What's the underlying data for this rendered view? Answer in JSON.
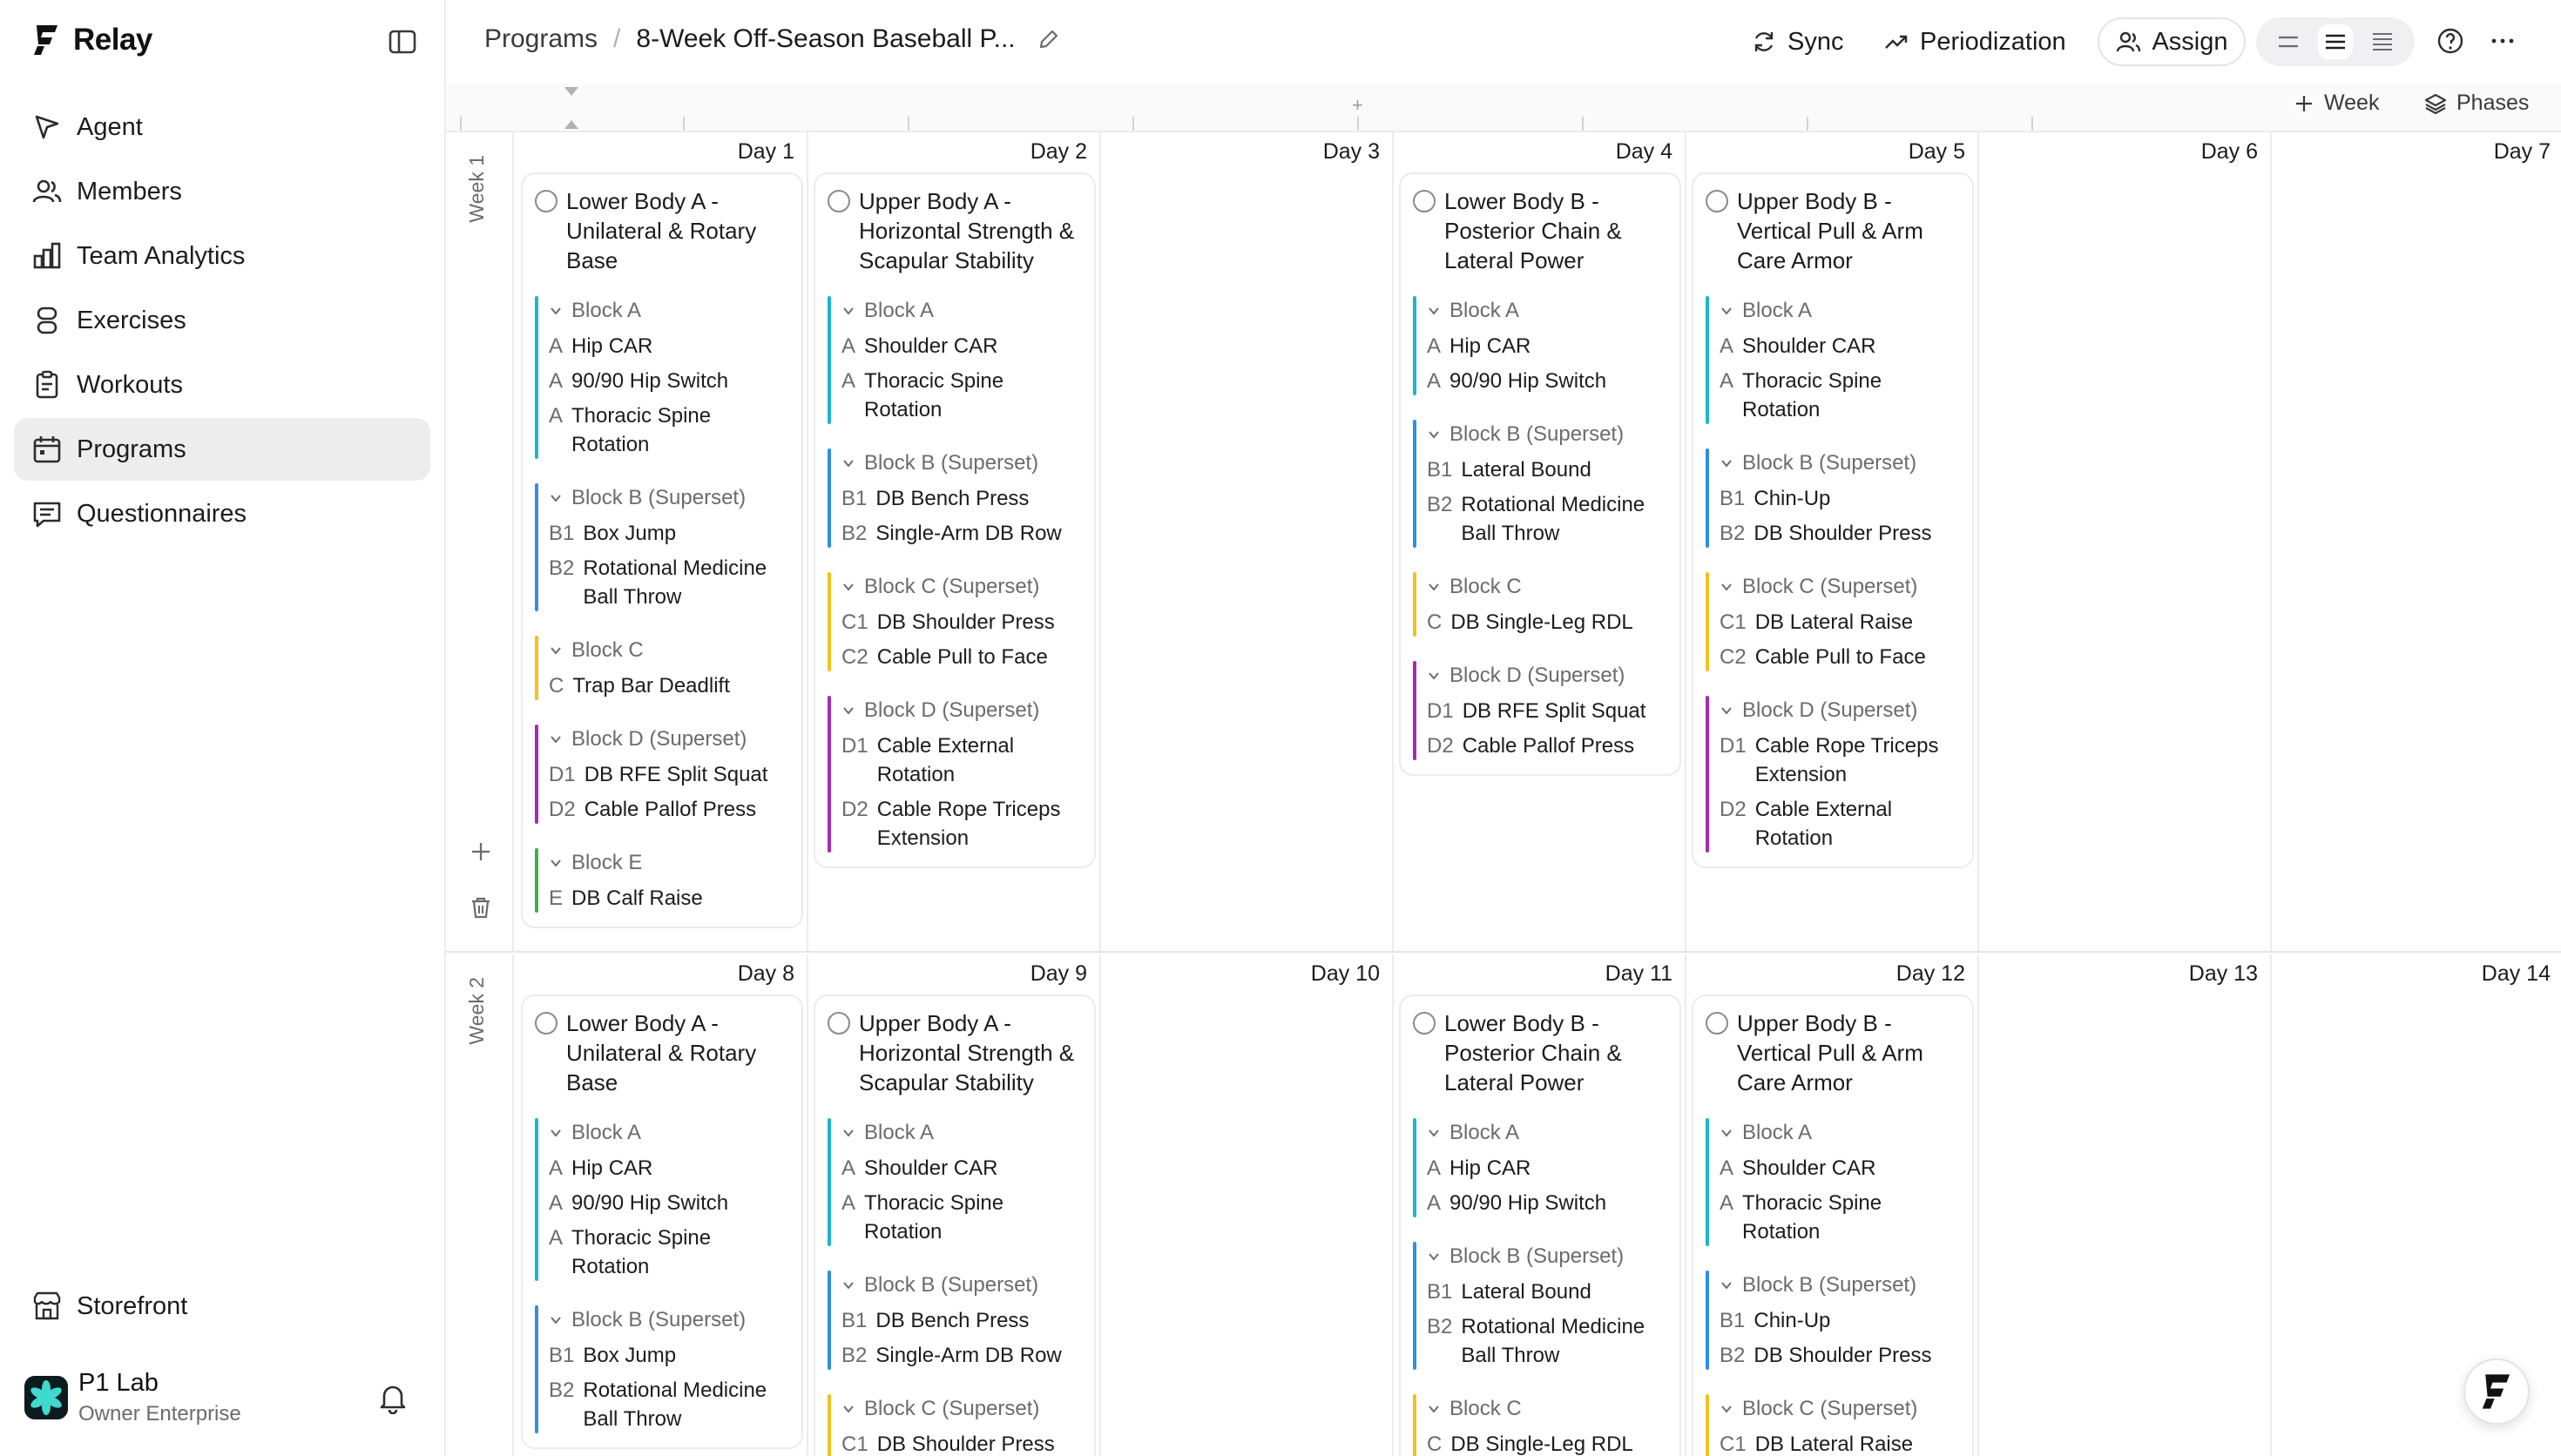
{
  "app": {
    "name": "Relay"
  },
  "sidebar": {
    "items": [
      {
        "label": "Agent",
        "icon": "agent-icon"
      },
      {
        "label": "Members",
        "icon": "members-icon"
      },
      {
        "label": "Team Analytics",
        "icon": "analytics-icon"
      },
      {
        "label": "Exercises",
        "icon": "exercises-icon"
      },
      {
        "label": "Workouts",
        "icon": "workouts-icon"
      },
      {
        "label": "Programs",
        "icon": "programs-icon",
        "active": true
      },
      {
        "label": "Questionnaires",
        "icon": "questionnaires-icon"
      }
    ],
    "storefront": "Storefront",
    "account": {
      "name": "P1 Lab",
      "role": "Owner  Enterprise"
    }
  },
  "header": {
    "breadcrumb_root": "Programs",
    "breadcrumb_sep": "/",
    "breadcrumb_current": "8-Week Off-Season Baseball P...",
    "sync": "Sync",
    "periodization": "Periodization",
    "assign": "Assign"
  },
  "strip": {
    "week": "Week",
    "phases": "Phases",
    "plus": "+"
  },
  "weeks": [
    {
      "label": "Week 1",
      "days": [
        {
          "label": "Day 1",
          "workout": {
            "title": "Lower Body A - Unilateral & Rotary Base",
            "blocks": [
              {
                "label": "Block A",
                "color": "#1ab8c9",
                "exercises": [
                  {
                    "code": "A",
                    "name": "Hip CAR"
                  },
                  {
                    "code": "A",
                    "name": "90/90 Hip Switch"
                  },
                  {
                    "code": "A",
                    "name": "Thoracic Spine Rotation"
                  }
                ]
              },
              {
                "label": "Block B (Superset)",
                "color": "#2f8fe6",
                "exercises": [
                  {
                    "code": "B1",
                    "name": "Box Jump"
                  },
                  {
                    "code": "B2",
                    "name": "Rotational Medicine Ball Throw"
                  }
                ]
              },
              {
                "label": "Block C",
                "color": "#f2c21b",
                "exercises": [
                  {
                    "code": "C",
                    "name": "Trap Bar Deadlift"
                  }
                ]
              },
              {
                "label": "Block D (Superset)",
                "color": "#a52ab8",
                "exercises": [
                  {
                    "code": "D1",
                    "name": "DB RFE Split Squat"
                  },
                  {
                    "code": "D2",
                    "name": "Cable Pallof Press"
                  }
                ]
              },
              {
                "label": "Block E",
                "color": "#34b34a",
                "exercises": [
                  {
                    "code": "E",
                    "name": "DB Calf Raise"
                  }
                ]
              }
            ]
          }
        },
        {
          "label": "Day 2",
          "workout": {
            "title": "Upper Body A - Horizontal Strength & Scapular Stability",
            "blocks": [
              {
                "label": "Block A",
                "color": "#1ab8c9",
                "exercises": [
                  {
                    "code": "A",
                    "name": "Shoulder CAR"
                  },
                  {
                    "code": "A",
                    "name": "Thoracic Spine Rotation"
                  }
                ]
              },
              {
                "label": "Block B (Superset)",
                "color": "#2f8fe6",
                "exercises": [
                  {
                    "code": "B1",
                    "name": "DB Bench Press"
                  },
                  {
                    "code": "B2",
                    "name": "Single-Arm DB Row"
                  }
                ]
              },
              {
                "label": "Block C (Superset)",
                "color": "#f2c21b",
                "exercises": [
                  {
                    "code": "C1",
                    "name": "DB Shoulder Press"
                  },
                  {
                    "code": "C2",
                    "name": "Cable Pull to Face"
                  }
                ]
              },
              {
                "label": "Block D (Superset)",
                "color": "#a52ab8",
                "exercises": [
                  {
                    "code": "D1",
                    "name": "Cable External Rotation"
                  },
                  {
                    "code": "D2",
                    "name": "Cable Rope Triceps Extension"
                  }
                ]
              }
            ]
          }
        },
        {
          "label": "Day 3",
          "workout": null
        },
        {
          "label": "Day 4",
          "workout": {
            "title": "Lower Body B - Posterior Chain & Lateral Power",
            "blocks": [
              {
                "label": "Block A",
                "color": "#1ab8c9",
                "exercises": [
                  {
                    "code": "A",
                    "name": "Hip CAR"
                  },
                  {
                    "code": "A",
                    "name": "90/90 Hip Switch"
                  }
                ]
              },
              {
                "label": "Block B (Superset)",
                "color": "#2f8fe6",
                "exercises": [
                  {
                    "code": "B1",
                    "name": "Lateral Bound"
                  },
                  {
                    "code": "B2",
                    "name": "Rotational Medicine Ball Throw"
                  }
                ]
              },
              {
                "label": "Block C",
                "color": "#f2c21b",
                "exercises": [
                  {
                    "code": "C",
                    "name": "DB Single-Leg RDL"
                  }
                ]
              },
              {
                "label": "Block D (Superset)",
                "color": "#a52ab8",
                "exercises": [
                  {
                    "code": "D1",
                    "name": "DB RFE Split Squat"
                  },
                  {
                    "code": "D2",
                    "name": "Cable Pallof Press"
                  }
                ]
              }
            ]
          }
        },
        {
          "label": "Day 5",
          "workout": {
            "title": "Upper Body B - Vertical Pull & Arm Care Armor",
            "blocks": [
              {
                "label": "Block A",
                "color": "#1ab8c9",
                "exercises": [
                  {
                    "code": "A",
                    "name": "Shoulder CAR"
                  },
                  {
                    "code": "A",
                    "name": "Thoracic Spine Rotation"
                  }
                ]
              },
              {
                "label": "Block B (Superset)",
                "color": "#2f8fe6",
                "exercises": [
                  {
                    "code": "B1",
                    "name": "Chin-Up"
                  },
                  {
                    "code": "B2",
                    "name": "DB Shoulder Press"
                  }
                ]
              },
              {
                "label": "Block C (Superset)",
                "color": "#f2c21b",
                "exercises": [
                  {
                    "code": "C1",
                    "name": "DB Lateral Raise"
                  },
                  {
                    "code": "C2",
                    "name": "Cable Pull to Face"
                  }
                ]
              },
              {
                "label": "Block D (Superset)",
                "color": "#a52ab8",
                "exercises": [
                  {
                    "code": "D1",
                    "name": "Cable Rope Triceps Extension"
                  },
                  {
                    "code": "D2",
                    "name": "Cable External Rotation"
                  }
                ]
              }
            ]
          }
        },
        {
          "label": "Day 6",
          "workout": null
        },
        {
          "label": "Day 7",
          "workout": null
        }
      ]
    },
    {
      "label": "Week 2",
      "days": [
        {
          "label": "Day 8",
          "workout": {
            "title": "Lower Body A - Unilateral & Rotary Base",
            "blocks": [
              {
                "label": "Block A",
                "color": "#1ab8c9",
                "exercises": [
                  {
                    "code": "A",
                    "name": "Hip CAR"
                  },
                  {
                    "code": "A",
                    "name": "90/90 Hip Switch"
                  },
                  {
                    "code": "A",
                    "name": "Thoracic Spine Rotation"
                  }
                ]
              },
              {
                "label": "Block B (Superset)",
                "color": "#2f8fe6",
                "exercises": [
                  {
                    "code": "B1",
                    "name": "Box Jump"
                  },
                  {
                    "code": "B2",
                    "name": "Rotational Medicine Ball Throw"
                  }
                ]
              }
            ]
          }
        },
        {
          "label": "Day 9",
          "workout": {
            "title": "Upper Body A - Horizontal Strength & Scapular Stability",
            "blocks": [
              {
                "label": "Block A",
                "color": "#1ab8c9",
                "exercises": [
                  {
                    "code": "A",
                    "name": "Shoulder CAR"
                  },
                  {
                    "code": "A",
                    "name": "Thoracic Spine Rotation"
                  }
                ]
              },
              {
                "label": "Block B (Superset)",
                "color": "#2f8fe6",
                "exercises": [
                  {
                    "code": "B1",
                    "name": "DB Bench Press"
                  },
                  {
                    "code": "B2",
                    "name": "Single-Arm DB Row"
                  }
                ]
              },
              {
                "label": "Block C (Superset)",
                "color": "#f2c21b",
                "exercises": [
                  {
                    "code": "C1",
                    "name": "DB Shoulder Press"
                  }
                ]
              }
            ]
          }
        },
        {
          "label": "Day 10",
          "workout": null
        },
        {
          "label": "Day 11",
          "workout": {
            "title": "Lower Body B - Posterior Chain & Lateral Power",
            "blocks": [
              {
                "label": "Block A",
                "color": "#1ab8c9",
                "exercises": [
                  {
                    "code": "A",
                    "name": "Hip CAR"
                  },
                  {
                    "code": "A",
                    "name": "90/90 Hip Switch"
                  }
                ]
              },
              {
                "label": "Block B (Superset)",
                "color": "#2f8fe6",
                "exercises": [
                  {
                    "code": "B1",
                    "name": "Lateral Bound"
                  },
                  {
                    "code": "B2",
                    "name": "Rotational Medicine Ball Throw"
                  }
                ]
              },
              {
                "label": "Block C",
                "color": "#f2c21b",
                "exercises": [
                  {
                    "code": "C",
                    "name": "DB Single-Leg RDL"
                  }
                ]
              }
            ]
          }
        },
        {
          "label": "Day 12",
          "workout": {
            "title": "Upper Body B - Vertical Pull & Arm Care Armor",
            "blocks": [
              {
                "label": "Block A",
                "color": "#1ab8c9",
                "exercises": [
                  {
                    "code": "A",
                    "name": "Shoulder CAR"
                  },
                  {
                    "code": "A",
                    "name": "Thoracic Spine Rotation"
                  }
                ]
              },
              {
                "label": "Block B (Superset)",
                "color": "#2f8fe6",
                "exercises": [
                  {
                    "code": "B1",
                    "name": "Chin-Up"
                  },
                  {
                    "code": "B2",
                    "name": "DB Shoulder Press"
                  }
                ]
              },
              {
                "label": "Block C (Superset)",
                "color": "#f2c21b",
                "exercises": [
                  {
                    "code": "C1",
                    "name": "DB Lateral Raise"
                  }
                ]
              }
            ]
          }
        },
        {
          "label": "Day 13",
          "workout": null
        },
        {
          "label": "Day 14",
          "workout": null
        }
      ]
    }
  ]
}
